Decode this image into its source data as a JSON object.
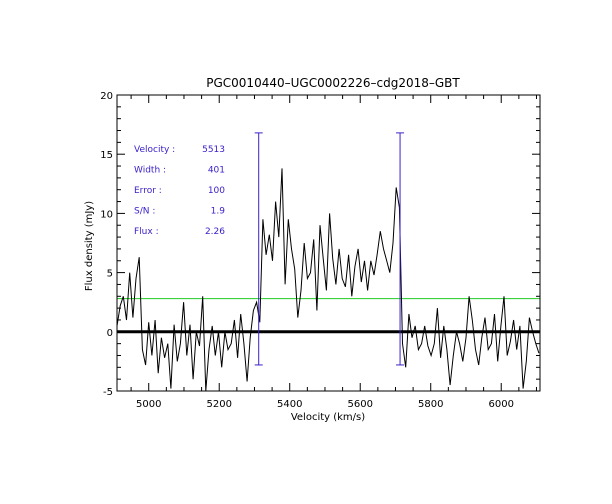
{
  "chart_data": {
    "type": "line",
    "title": "PGC0010440–UGC0002226–cdg2018–GBT",
    "xlabel": "Velocity (km/s)",
    "ylabel": "Flux density (mJy)",
    "xlim": [
      4910,
      6110
    ],
    "ylim": [
      -5,
      20
    ],
    "xticks": [
      5000,
      5200,
      5400,
      5600,
      5800,
      6000
    ],
    "yticks": [
      -5,
      0,
      5,
      10,
      15,
      20
    ],
    "grid": false,
    "annotations": [
      {
        "label": "Velocity :",
        "value": "5513"
      },
      {
        "label": "Width :",
        "value": "401"
      },
      {
        "label": "Error :",
        "value": "100"
      },
      {
        "label": "S/N :",
        "value": "1.9"
      },
      {
        "label": "Flux :",
        "value": "2.26"
      }
    ],
    "reference_lines": {
      "zero": {
        "y": 0,
        "color": "#000000"
      },
      "noise_level": {
        "y": 2.8,
        "color": "#22cc22"
      }
    },
    "markers": [
      {
        "x": 5312,
        "y_top": 16.8,
        "y_bottom": -2.8,
        "color": "#3a22cc"
      },
      {
        "x": 5713,
        "y_top": 16.8,
        "y_bottom": -2.8,
        "color": "#3a22cc"
      }
    ],
    "series": [
      {
        "color": "#000000",
        "x": [
          4910,
          4919,
          4928,
          4937,
          4946,
          4955,
          4964,
          4973,
          4982,
          4991,
          5000,
          5009,
          5018,
          5027,
          5036,
          5045,
          5054,
          5063,
          5072,
          5081,
          5090,
          5099,
          5108,
          5117,
          5126,
          5135,
          5144,
          5153,
          5162,
          5171,
          5180,
          5189,
          5198,
          5207,
          5216,
          5225,
          5234,
          5243,
          5252,
          5261,
          5270,
          5279,
          5288,
          5297,
          5306,
          5315,
          5324,
          5333,
          5342,
          5351,
          5360,
          5369,
          5378,
          5387,
          5396,
          5405,
          5414,
          5423,
          5432,
          5441,
          5450,
          5459,
          5468,
          5477,
          5486,
          5495,
          5504,
          5513,
          5522,
          5531,
          5540,
          5549,
          5558,
          5567,
          5576,
          5585,
          5594,
          5603,
          5612,
          5621,
          5630,
          5639,
          5648,
          5657,
          5666,
          5675,
          5684,
          5693,
          5702,
          5711,
          5720,
          5729,
          5738,
          5747,
          5756,
          5765,
          5774,
          5783,
          5792,
          5801,
          5810,
          5819,
          5828,
          5837,
          5846,
          5855,
          5864,
          5873,
          5882,
          5891,
          5900,
          5909,
          5918,
          5927,
          5936,
          5945,
          5954,
          5963,
          5972,
          5981,
          5990,
          5999,
          6008,
          6017,
          6026,
          6035,
          6044,
          6053,
          6062,
          6071,
          6080,
          6089,
          6098,
          6107
        ],
        "y": [
          0.5,
          2.2,
          3.0,
          1.0,
          5.0,
          1.2,
          4.5,
          6.3,
          -1.5,
          -2.8,
          0.8,
          -2.0,
          1.0,
          -3.5,
          -0.5,
          -2.2,
          -1.0,
          -4.8,
          0.6,
          -2.5,
          -1.0,
          2.5,
          -2.0,
          0.6,
          -4.0,
          0.0,
          -1.2,
          3.0,
          -5.0,
          -1.5,
          0.5,
          -2.0,
          0.0,
          -3.0,
          0.0,
          -1.5,
          -1.0,
          1.0,
          -2.2,
          1.5,
          -1.0,
          -4.2,
          -0.5,
          1.8,
          2.5,
          0.8,
          9.5,
          6.5,
          8.2,
          6.0,
          11.0,
          8.0,
          13.8,
          4.0,
          9.5,
          7.0,
          5.3,
          1.2,
          3.5,
          7.5,
          4.5,
          5.0,
          7.8,
          1.8,
          9.0,
          6.2,
          3.5,
          10.0,
          6.2,
          4.0,
          7.0,
          4.5,
          3.8,
          6.5,
          3.0,
          5.5,
          7.0,
          4.2,
          6.0,
          3.5,
          6.0,
          4.8,
          6.5,
          8.5,
          7.0,
          6.0,
          5.0,
          7.5,
          12.2,
          10.5,
          -1.0,
          -3.0,
          1.5,
          -0.5,
          0.5,
          -1.5,
          -1.0,
          0.5,
          -1.2,
          -2.0,
          -1.0,
          2.0,
          -2.2,
          0.5,
          -1.5,
          -4.5,
          -2.0,
          0.0,
          -1.0,
          -2.5,
          -0.5,
          3.0,
          1.0,
          -1.5,
          -2.8,
          -0.5,
          1.2,
          -1.5,
          -1.0,
          1.5,
          -2.5,
          0.5,
          3.0,
          -2.0,
          -0.8,
          1.0,
          -1.5,
          0.5,
          -4.8,
          -2.5,
          1.2,
          0.0,
          -1.0,
          -1.8
        ]
      }
    ]
  }
}
